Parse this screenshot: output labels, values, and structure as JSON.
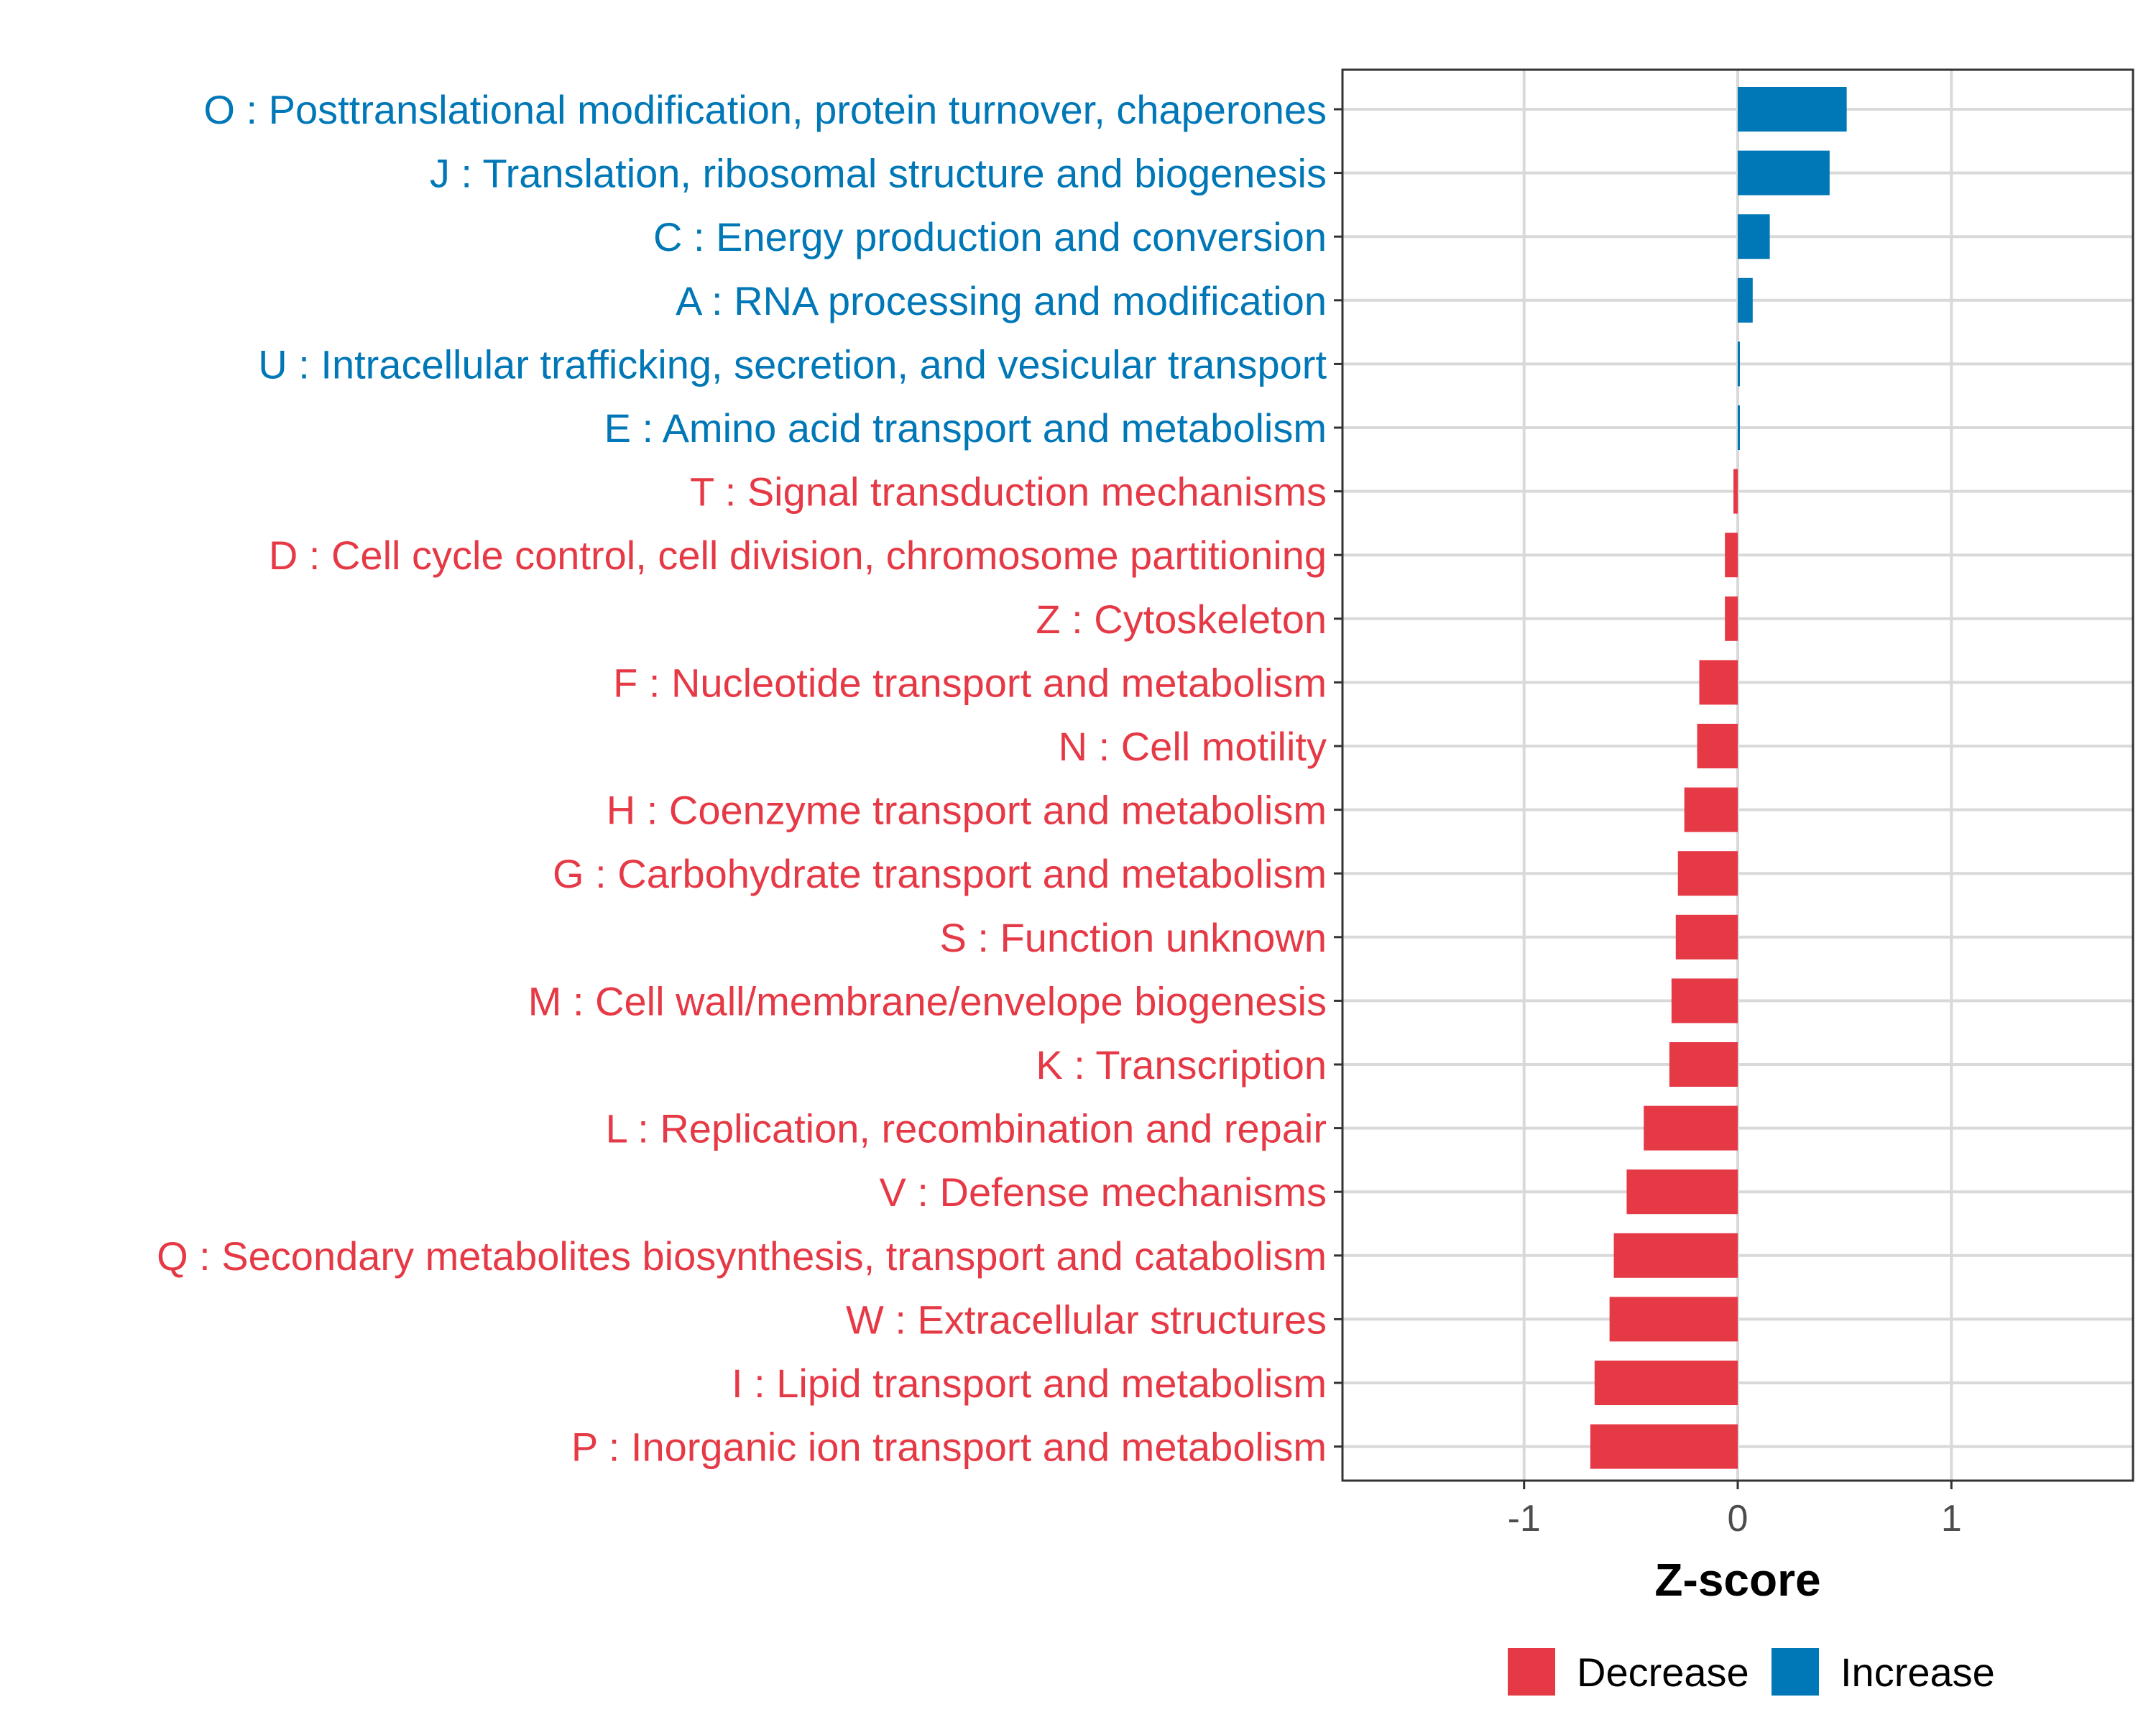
{
  "chart_data": {
    "type": "bar",
    "orientation": "horizontal",
    "xlabel": "Z-score",
    "xlim": [
      -1.85,
      1.85
    ],
    "xticks": [
      -1,
      0,
      1
    ],
    "xtick_labels": [
      "-1",
      "0",
      "1"
    ],
    "grid": true,
    "legend_position": "bottom-right",
    "legend": [
      {
        "label": "Decrease",
        "color": "#e63946"
      },
      {
        "label": "Increase",
        "color": "#0077b6"
      }
    ],
    "categories": [
      "O : Posttranslational modification, protein turnover, chaperones",
      "J : Translation, ribosomal structure and biogenesis",
      "C : Energy production and conversion",
      "A : RNA processing and modification",
      "U : Intracellular trafficking, secretion, and vesicular transport",
      "E : Amino acid transport and metabolism",
      "T : Signal transduction mechanisms",
      "D : Cell cycle control, cell division, chromosome partitioning",
      "Z : Cytoskeleton",
      "F : Nucleotide transport and metabolism",
      "N : Cell motility",
      "H : Coenzyme transport and metabolism",
      "G : Carbohydrate transport and metabolism",
      "S : Function unknown",
      "M : Cell wall/membrane/envelope biogenesis",
      "K : Transcription",
      "L : Replication, recombination and repair",
      "V : Defense mechanisms",
      "Q : Secondary metabolites biosynthesis, transport and catabolism",
      "W : Extracellular structures",
      "I : Lipid transport and metabolism",
      "P : Inorganic ion transport and metabolism"
    ],
    "values": [
      0.51,
      0.43,
      0.15,
      0.07,
      0.01,
      0.005,
      -0.02,
      -0.06,
      -0.06,
      -0.18,
      -0.19,
      -0.25,
      -0.28,
      -0.29,
      -0.31,
      -0.32,
      -0.44,
      -0.52,
      -0.58,
      -0.6,
      -0.67,
      -0.69
    ],
    "series": [
      {
        "name": "Z-score",
        "values": [
          0.51,
          0.43,
          0.15,
          0.07,
          0.01,
          0.005,
          -0.02,
          -0.06,
          -0.06,
          -0.18,
          -0.19,
          -0.25,
          -0.28,
          -0.29,
          -0.31,
          -0.32,
          -0.44,
          -0.52,
          -0.58,
          -0.6,
          -0.67,
          -0.69
        ]
      }
    ]
  }
}
